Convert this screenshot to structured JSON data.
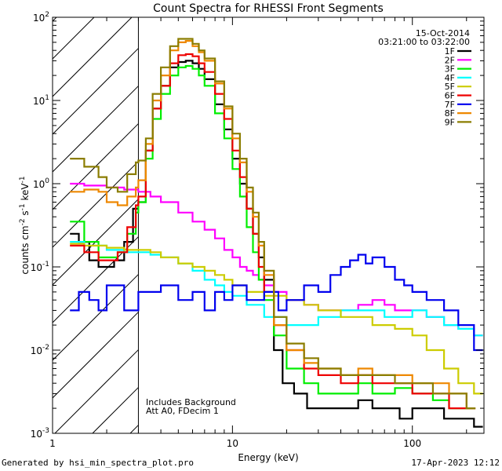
{
  "chart_data": {
    "type": "line",
    "title": "Count Spectra for RHESSI Front Segments",
    "xlabel": "Energy (keV)",
    "ylabel_main": "counts cm",
    "ylabel_parts": [
      "-2",
      " s",
      "-1",
      " keV",
      "-1"
    ],
    "xscale": "log",
    "yscale": "log",
    "xlim": [
      1,
      250
    ],
    "ylim": [
      0.001,
      100
    ],
    "x_tick_labels": [
      {
        "value": 1,
        "label": "1"
      },
      {
        "value": 10,
        "label": "10"
      },
      {
        "value": 100,
        "label": "100"
      }
    ],
    "y_tick_labels": [
      {
        "exp": -3,
        "label": "10",
        "sup": "-3"
      },
      {
        "exp": -2,
        "label": "10",
        "sup": "-2"
      },
      {
        "exp": -1,
        "label": "10",
        "sup": "-1"
      },
      {
        "exp": 0,
        "label": "10",
        "sup": "0"
      },
      {
        "exp": 1,
        "label": "10",
        "sup": "1"
      },
      {
        "exp": 2,
        "label": "10",
        "sup": "2"
      }
    ],
    "attenuated_region_max_keV": 3,
    "date": "15-Oct-2014",
    "time_range": "03:21:00 to 03:22:00",
    "annotation_1": "Includes Background",
    "annotation_2": "Att A0, FDecim 1",
    "series": [
      {
        "name": "1F",
        "color": "#000000",
        "x": [
          1.25,
          1.4,
          1.6,
          1.8,
          2.0,
          2.2,
          2.5,
          2.8,
          3.0,
          3.3,
          3.6,
          4.0,
          4.5,
          5.0,
          5.5,
          6.0,
          6.5,
          7.0,
          8.0,
          9.0,
          10.0,
          11.0,
          12.0,
          13.0,
          14.0,
          15.0,
          17.0,
          19.0,
          22.0,
          26.0,
          30.0,
          36.0,
          42.0,
          50.0,
          60.0,
          70.0,
          85.0,
          100.0,
          120.0,
          150.0,
          180.0,
          220.0
        ],
        "y": [
          0.25,
          0.2,
          0.12,
          0.1,
          0.1,
          0.12,
          0.2,
          0.5,
          0.6,
          2.5,
          8,
          15,
          25,
          29,
          30,
          28,
          24,
          18,
          9,
          4.5,
          2,
          1,
          0.5,
          0.25,
          0.13,
          0.07,
          0.01,
          0.004,
          0.003,
          0.002,
          0.002,
          0.002,
          0.002,
          0.0025,
          0.002,
          0.002,
          0.0015,
          0.002,
          0.002,
          0.0015,
          0.0015,
          0.0012
        ]
      },
      {
        "name": "2F",
        "color": "#ff00ff",
        "x": [
          1.25,
          1.5,
          2.0,
          2.5,
          3.0,
          3.5,
          4.0,
          5.0,
          6.0,
          7.0,
          8.0,
          9.0,
          10.0,
          11.0,
          12.0,
          13.0,
          14.0,
          15.0,
          17.0,
          20.0,
          25.0,
          30.0,
          40.0,
          50.0,
          60.0,
          70.0,
          80.0,
          100.0,
          120.0,
          150.0,
          180.0,
          220.0
        ],
        "y": [
          1.0,
          0.95,
          0.9,
          0.85,
          0.8,
          0.7,
          0.6,
          0.45,
          0.35,
          0.28,
          0.22,
          0.16,
          0.13,
          0.1,
          0.09,
          0.08,
          0.07,
          0.06,
          0.05,
          0.04,
          0.035,
          0.03,
          0.03,
          0.035,
          0.04,
          0.035,
          0.03,
          0.03,
          0.025,
          0.02,
          0.018,
          0.015
        ]
      },
      {
        "name": "3F",
        "color": "#00ee00",
        "x": [
          1.25,
          1.5,
          1.8,
          2.0,
          2.3,
          2.6,
          2.9,
          3.0,
          3.3,
          3.6,
          4.0,
          4.5,
          5.0,
          5.5,
          6.0,
          6.5,
          7.0,
          8.0,
          9.0,
          10.0,
          11.0,
          12.0,
          13.0,
          14.0,
          15.0,
          17.0,
          20.0,
          25.0,
          30.0,
          40.0,
          50.0,
          60.0,
          80.0,
          100.0,
          130.0,
          160.0,
          200.0
        ],
        "y": [
          0.35,
          0.2,
          0.13,
          0.13,
          0.15,
          0.25,
          0.45,
          0.6,
          2,
          6,
          12,
          20,
          25,
          26,
          24,
          20,
          15,
          7,
          3.5,
          1.5,
          0.7,
          0.3,
          0.15,
          0.07,
          0.04,
          0.015,
          0.006,
          0.004,
          0.003,
          0.003,
          0.004,
          0.003,
          0.0035,
          0.003,
          0.0025,
          0.002,
          0.002
        ]
      },
      {
        "name": "4F",
        "color": "#00ffff",
        "x": [
          1.25,
          1.5,
          2.0,
          2.5,
          3.0,
          3.5,
          4.0,
          5.0,
          6.0,
          7.0,
          8.0,
          9.0,
          10.0,
          12.0,
          15.0,
          20.0,
          25.0,
          30.0,
          40.0,
          50.0,
          60.0,
          70.0,
          80.0,
          100.0,
          120.0,
          150.0,
          180.0,
          220.0
        ],
        "y": [
          0.2,
          0.18,
          0.16,
          0.15,
          0.15,
          0.14,
          0.13,
          0.11,
          0.09,
          0.07,
          0.06,
          0.05,
          0.045,
          0.035,
          0.025,
          0.02,
          0.02,
          0.025,
          0.03,
          0.03,
          0.03,
          0.025,
          0.025,
          0.03,
          0.025,
          0.02,
          0.018,
          0.015
        ]
      },
      {
        "name": "5F",
        "color": "#cccc00",
        "x": [
          1.25,
          1.5,
          2.0,
          2.5,
          3.0,
          3.5,
          4.0,
          5.0,
          6.0,
          7.0,
          8.0,
          9.0,
          10.0,
          12.0,
          15.0,
          20.0,
          25.0,
          30.0,
          40.0,
          50.0,
          60.0,
          70.0,
          80.0,
          100.0,
          120.0,
          150.0,
          180.0,
          220.0
        ],
        "y": [
          0.19,
          0.18,
          0.17,
          0.16,
          0.16,
          0.15,
          0.13,
          0.11,
          0.1,
          0.09,
          0.08,
          0.07,
          0.06,
          0.05,
          0.045,
          0.04,
          0.035,
          0.03,
          0.025,
          0.025,
          0.02,
          0.02,
          0.018,
          0.015,
          0.01,
          0.006,
          0.004,
          0.003
        ]
      },
      {
        "name": "6F",
        "color": "#ee0000",
        "x": [
          1.25,
          1.5,
          1.8,
          2.0,
          2.3,
          2.6,
          2.9,
          3.0,
          3.3,
          3.6,
          4.0,
          4.5,
          5.0,
          5.5,
          6.0,
          6.5,
          7.0,
          8.0,
          9.0,
          10.0,
          11.0,
          12.0,
          13.0,
          14.0,
          15.0,
          17.0,
          20.0,
          25.0,
          30.0,
          40.0,
          50.0,
          60.0,
          80.0,
          100.0,
          130.0,
          160.0,
          200.0
        ],
        "y": [
          0.18,
          0.15,
          0.12,
          0.12,
          0.15,
          0.3,
          0.55,
          0.7,
          2.5,
          8,
          15,
          28,
          35,
          36,
          34,
          28,
          22,
          12,
          6,
          2.5,
          1.2,
          0.5,
          0.25,
          0.1,
          0.05,
          0.02,
          0.01,
          0.006,
          0.005,
          0.004,
          0.005,
          0.004,
          0.004,
          0.003,
          0.003,
          0.002,
          0.002
        ]
      },
      {
        "name": "7F",
        "color": "#0000ee",
        "x": [
          1.25,
          1.4,
          1.6,
          1.8,
          2.0,
          2.5,
          3.0,
          4.0,
          5.0,
          6.0,
          7.0,
          8.0,
          9.0,
          10.0,
          12.0,
          15.0,
          18.0,
          20.0,
          25.0,
          30.0,
          35.0,
          40.0,
          45.0,
          50.0,
          55.0,
          60.0,
          70.0,
          80.0,
          90.0,
          100.0,
          120.0,
          150.0,
          180.0,
          220.0
        ],
        "y": [
          0.03,
          0.05,
          0.04,
          0.03,
          0.06,
          0.03,
          0.05,
          0.06,
          0.04,
          0.05,
          0.03,
          0.05,
          0.04,
          0.06,
          0.04,
          0.05,
          0.03,
          0.04,
          0.06,
          0.05,
          0.08,
          0.1,
          0.12,
          0.14,
          0.11,
          0.13,
          0.1,
          0.07,
          0.06,
          0.05,
          0.04,
          0.03,
          0.02,
          0.01
        ]
      },
      {
        "name": "8F",
        "color": "#ee8800",
        "x": [
          1.25,
          1.5,
          1.8,
          2.0,
          2.3,
          2.6,
          2.9,
          3.0,
          3.3,
          3.6,
          4.0,
          4.5,
          5.0,
          5.5,
          6.0,
          6.5,
          7.0,
          8.0,
          9.0,
          10.0,
          11.0,
          12.0,
          13.0,
          14.0,
          15.0,
          17.0,
          20.0,
          25.0,
          30.0,
          40.0,
          50.0,
          60.0,
          80.0,
          100.0,
          130.0,
          160.0,
          200.0
        ],
        "y": [
          0.8,
          0.85,
          0.8,
          0.6,
          0.55,
          0.7,
          0.9,
          1.1,
          3,
          10,
          20,
          40,
          50,
          52,
          45,
          38,
          30,
          16,
          8,
          3.5,
          1.8,
          0.8,
          0.4,
          0.18,
          0.08,
          0.02,
          0.01,
          0.007,
          0.006,
          0.005,
          0.006,
          0.005,
          0.005,
          0.004,
          0.004,
          0.003,
          0.002
        ]
      },
      {
        "name": "9F",
        "color": "#8b7d00",
        "x": [
          1.25,
          1.5,
          1.8,
          2.0,
          2.3,
          2.6,
          2.9,
          3.0,
          3.3,
          3.6,
          4.0,
          4.5,
          5.0,
          5.5,
          6.0,
          6.5,
          7.0,
          8.0,
          9.0,
          10.0,
          11.0,
          12.0,
          13.0,
          14.0,
          15.0,
          17.0,
          20.0,
          25.0,
          30.0,
          40.0,
          50.0,
          60.0,
          80.0,
          100.0,
          130.0,
          160.0,
          200.0
        ],
        "y": [
          2,
          1.6,
          1.2,
          0.9,
          0.8,
          1.3,
          1.8,
          1.9,
          3.5,
          12,
          25,
          45,
          55,
          55,
          48,
          40,
          32,
          17,
          8.5,
          4,
          2,
          0.9,
          0.45,
          0.2,
          0.09,
          0.025,
          0.012,
          0.008,
          0.006,
          0.005,
          0.005,
          0.005,
          0.004,
          0.004,
          0.003,
          0.003,
          0.002
        ]
      }
    ]
  },
  "footer": {
    "generated_by": "Generated by hsi_min_spectra_plot.pro",
    "timestamp": "17-Apr-2023 12:12"
  }
}
